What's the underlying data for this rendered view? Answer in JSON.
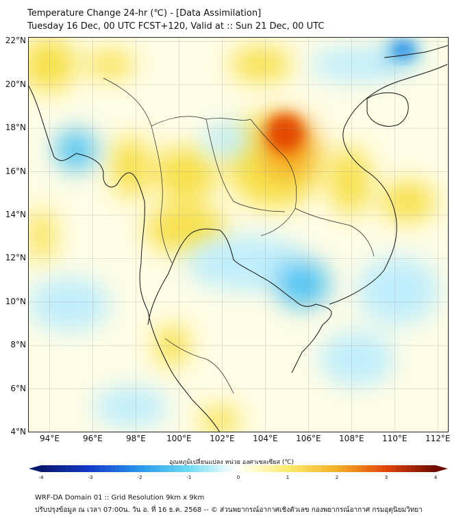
{
  "title": {
    "line1": "Temperature Change 24-hr (℃) - [Data Assimilation]",
    "line2": "Tuesday 16 Dec, 00 UTC FCST+120, Valid at :: Sun 21 Dec, 00 UTC"
  },
  "map": {
    "lon_range": [
      93,
      112.5
    ],
    "lat_range": [
      4,
      22.2
    ],
    "y_ticks": [
      "4°N",
      "6°N",
      "8°N",
      "10°N",
      "12°N",
      "14°N",
      "16°N",
      "18°N",
      "20°N",
      "22°N"
    ],
    "y_tick_values": [
      4,
      6,
      8,
      10,
      12,
      14,
      16,
      18,
      20,
      22
    ],
    "x_ticks": [
      "94°E",
      "96°E",
      "98°E",
      "100°E",
      "102°E",
      "104°E",
      "106°E",
      "108°E",
      "110°E",
      "112°E"
    ],
    "x_tick_values": [
      94,
      96,
      98,
      100,
      102,
      104,
      106,
      108,
      110,
      112
    ],
    "colors": {
      "warm_strong": "#e34a00",
      "warm": "#f5a31f",
      "warm_light": "#f7e04a",
      "neutral": "#fffde6",
      "cool_light": "#bfeefc",
      "cool": "#4fc3f2",
      "cool_strong": "#1e88e5"
    }
  },
  "colorbar": {
    "label": "อุณหภูมิเปลี่ยนแปลง หน่วย องศาเซลเซียส (℃)",
    "min": -4,
    "max": 4,
    "ticks": [
      "-4",
      "-3",
      "-2",
      "-1",
      "0",
      "1",
      "2",
      "3",
      "4"
    ],
    "tick_values": [
      -4,
      -3,
      -2,
      -1,
      0,
      1,
      2,
      3,
      4
    ]
  },
  "footer": {
    "line1": "WRF-DA Domain 01 :: Grid Resolution 9km x 9km",
    "line2": "ปรับปรุงข้อมูล ณ เวลา 07:00น. วัน อ. ที่ 16 ธ.ค. 2568 -- © ส่วนพยากรณ์อากาศเชิงตัวเลข กองพยากรณ์อากาศ กรมอุตุนิยมวิทยา"
  }
}
